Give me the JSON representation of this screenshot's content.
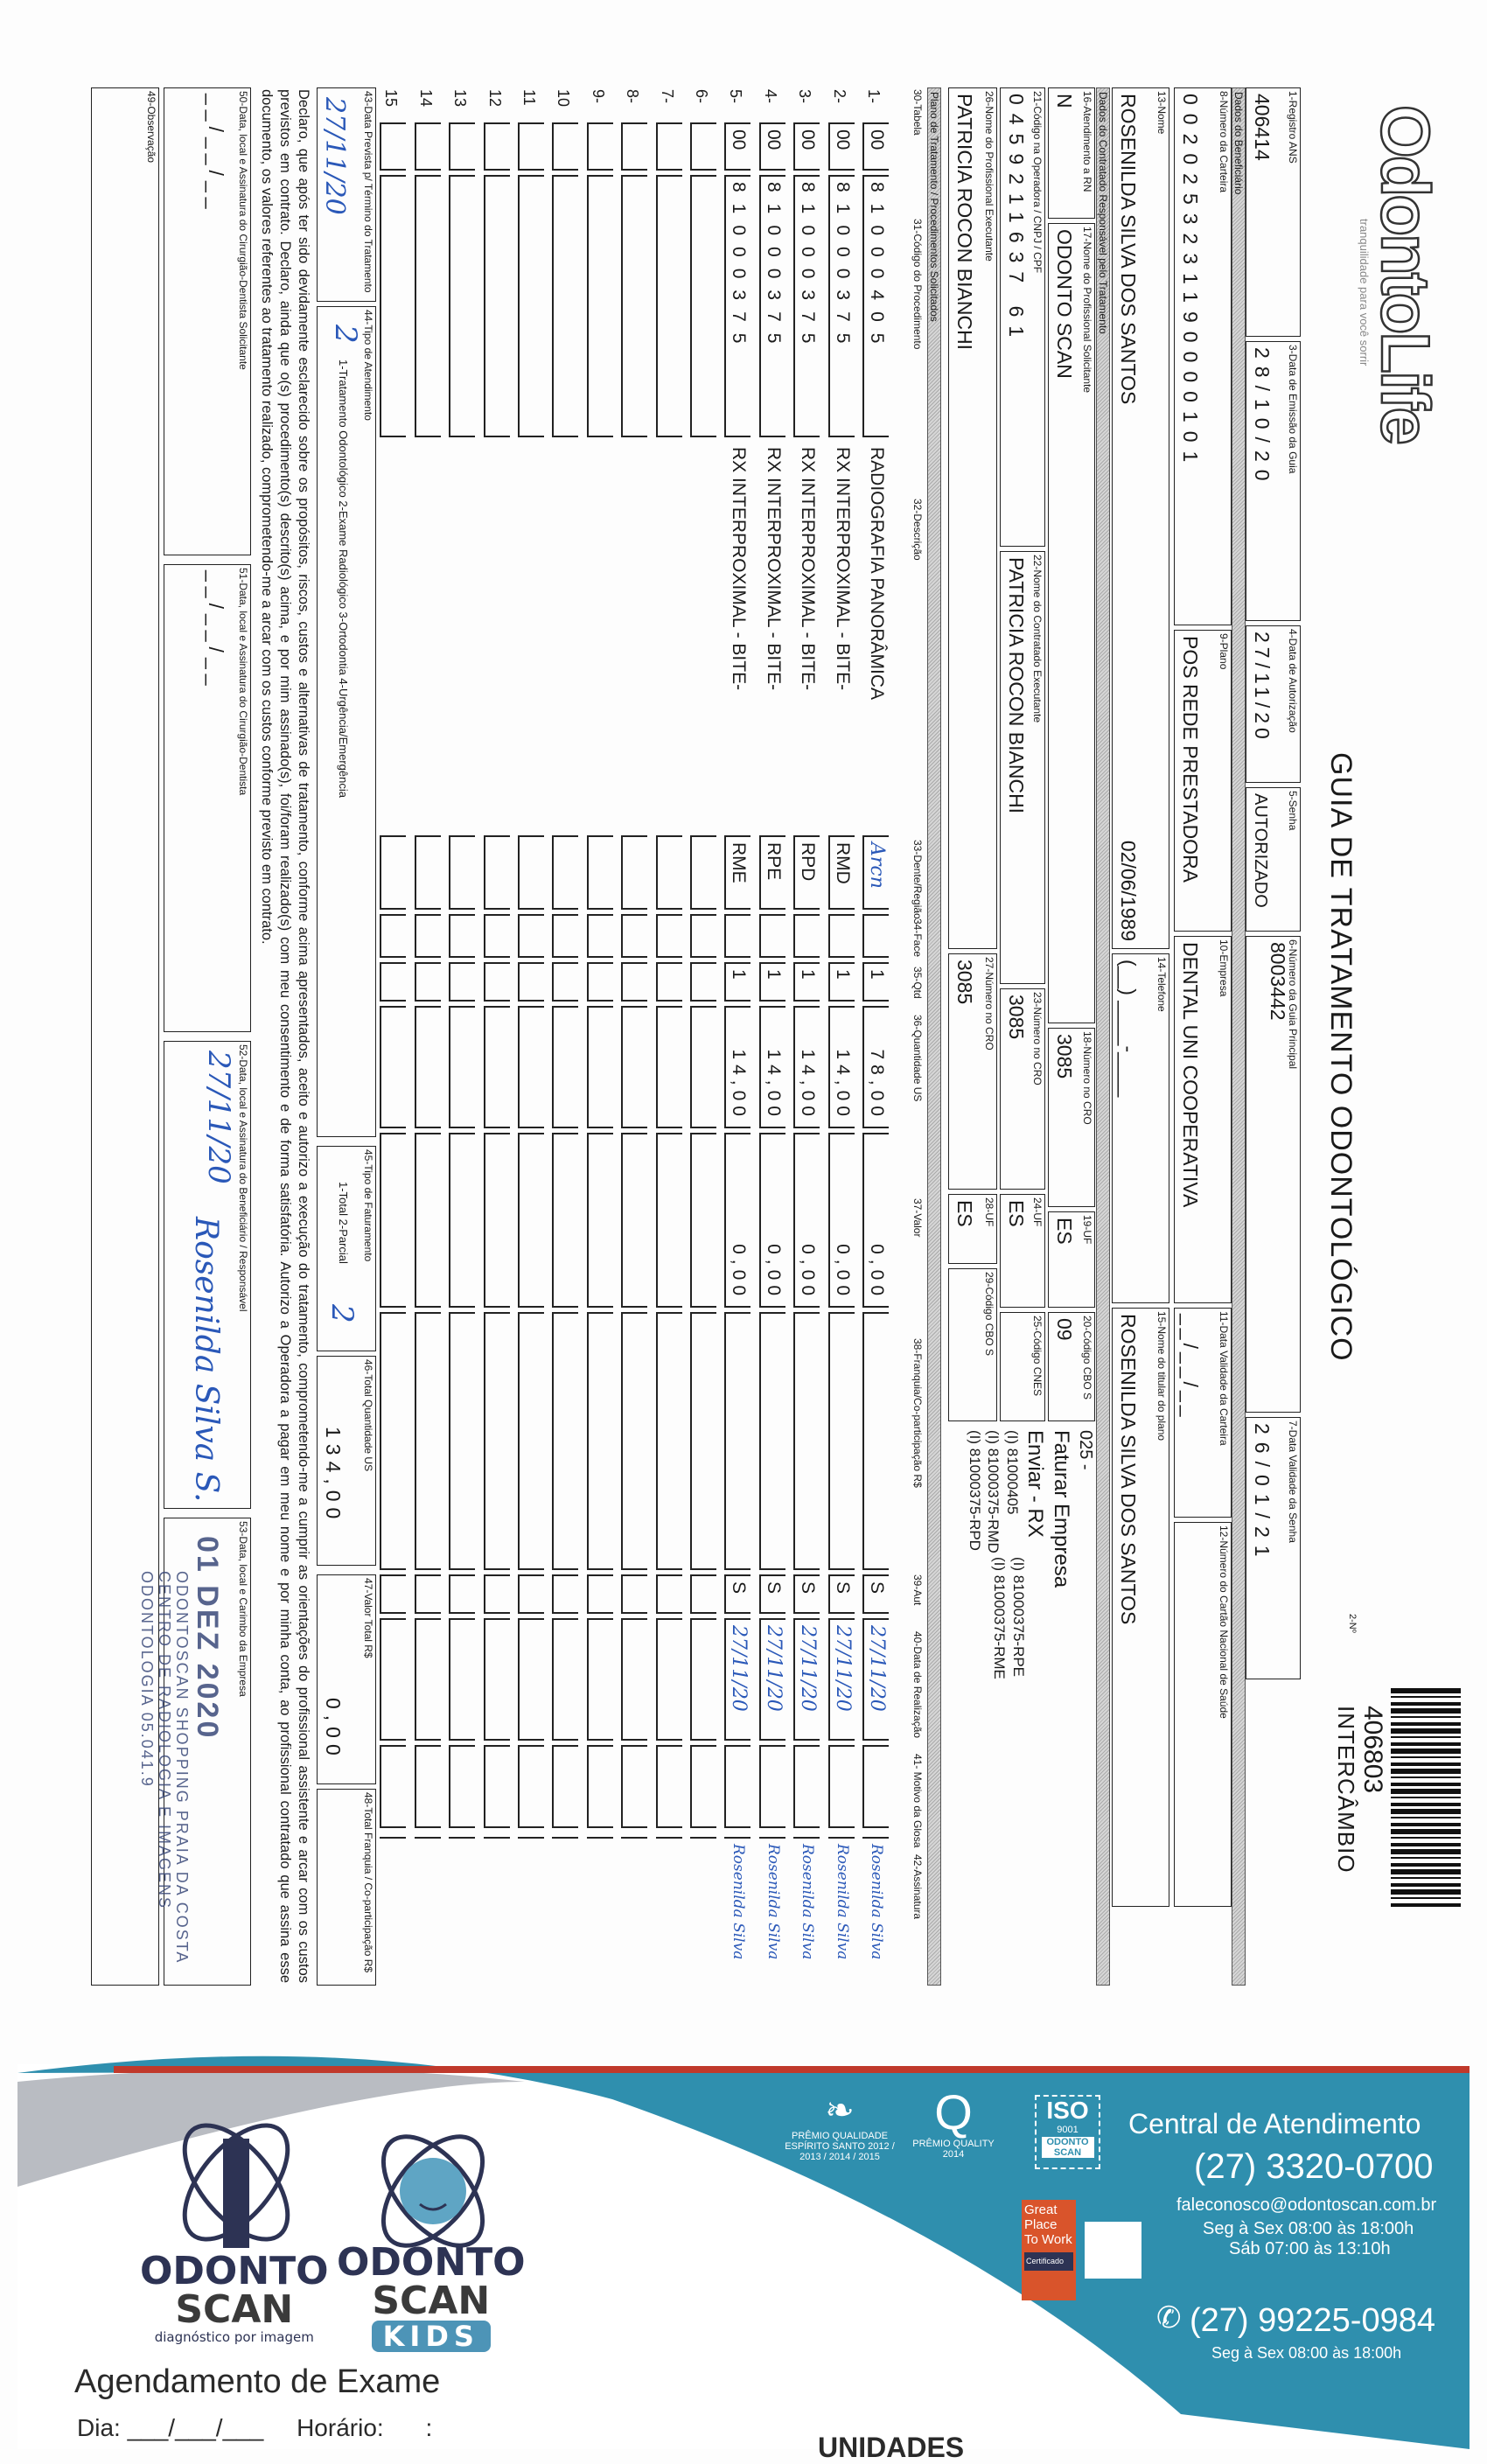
{
  "header": {
    "logo": "OdontoLife",
    "tagline": "tranquilidade para você sorrir",
    "title": "GUIA DE TRATAMENTO ODONTOLÓGICO",
    "num_label": "2-Nº",
    "guide_number": "406803",
    "guide_type": "INTERCÂMBIO"
  },
  "fields": {
    "registro_ans": {
      "label": "1-Registro ANS",
      "value": "406414"
    },
    "data_emissao": {
      "label": "3-Data de Emissão da Guia",
      "value": "28/10/20"
    },
    "data_autorizacao": {
      "label": "4-Data de Autorização",
      "value": "27/11/20"
    },
    "senha": {
      "label": "5-Senha",
      "value": "AUTORIZADO"
    },
    "guia_principal": {
      "label": "6-Número da Guia Principal",
      "value": "8003442"
    },
    "validade_senha": {
      "label": "7-Data Validade da Senha",
      "value": "26/01/21"
    },
    "carteira": {
      "label": "8-Número da Carteira",
      "value": "0020253231190000101"
    },
    "plano": {
      "label": "9-Plano",
      "value": "POS REDE PRESTADORA"
    },
    "empresa": {
      "label": "10-Empresa",
      "value": "DENTAL UNI COOPERATIVA"
    },
    "validade_carteira": {
      "label": "11-Data Validade da Carteira",
      "value": "__/__/__"
    },
    "cartao_saude": {
      "label": "12-Número do Cartão Nacional de Saúde",
      "value": ""
    },
    "nome": {
      "label": "13-Nome",
      "value": "ROSENILDA SILVA DOS SANTOS",
      "extra": "02/06/1989"
    },
    "telefone": {
      "label": "14-Telefone",
      "value": "(__) ____-____"
    },
    "titular": {
      "label": "15-Nome do titular do plano",
      "value": "ROSENILDA SILVA DOS SANTOS"
    },
    "atendimento_rn": {
      "label": "16-Atendimento a RN",
      "value": "N"
    },
    "prof_solicitante": {
      "label": "17-Nome do Profissional Solicitante",
      "value": "ODONTO SCAN"
    },
    "cro_sol": {
      "label": "18-Número no CRO",
      "value": "3085"
    },
    "uf_sol": {
      "label": "19-UF",
      "value": "ES"
    },
    "cbo_sol": {
      "label": "20-Código CBO S",
      "value": "09"
    },
    "cod_operadora": {
      "label": "21-Código na Operadora / CNPJ / CPF",
      "value": "0459211637 61"
    },
    "contratado_exec": {
      "label": "22-Nome do Contratado Executante",
      "value": "PATRICIA ROCON BIANCHI"
    },
    "cro_contr": {
      "label": "23-Número no CRO",
      "value": "3085"
    },
    "uf_contr": {
      "label": "24-UF",
      "value": "ES"
    },
    "cnes": {
      "label": "25-Código CNES",
      "value": ""
    },
    "prof_exec": {
      "label": "26-Nome do Profissional Executante",
      "value": "PATRICIA ROCON BIANCHI"
    },
    "cro_exec": {
      "label": "27-Número no CRO",
      "value": "3085"
    },
    "uf_exec": {
      "label": "28-UF",
      "value": "ES"
    },
    "cbo_exec": {
      "label": "29-Código CBO S",
      "value": ""
    }
  },
  "notes": [
    "025 -",
    "Faturar Empresa",
    "Enviar - RX",
    "(I) 81000405",
    "(I) 81000375-RPE",
    "(I) 81000375-RMD",
    "(I) 81000375-RME",
    "(I) 81000375-RPD"
  ],
  "bands": {
    "beneficiario": "Dados do Beneficiário",
    "contratado": "Dados do Contratado Responsável pelo Tratamento",
    "plano": "Plano de Tratamento / Procedimentos Solicitados"
  },
  "columns": {
    "tabela": "30-Tabela",
    "codigo": "31-Código do Procedimento",
    "descricao": "32-Descrição",
    "dente": "33-Dente/Região",
    "face": "34-Face",
    "qtd": "35-Qtd",
    "us": "36-Quantidade US",
    "valor": "37-Valor",
    "franquia": "38-Franquia/Co-participação R$",
    "aut": "39-Aut",
    "data": "40-Data de Realização",
    "glosa": "41- Motivo da Glosa",
    "assinatura": "42-Assinatura"
  },
  "items": [
    {
      "n": "1-",
      "tabela": "00",
      "codigo": "81000405",
      "descricao": "RADIOGRAFIA PANORÂMICA",
      "dente": "Arcn",
      "face": "",
      "qtd": "1",
      "us": "78,00",
      "valor": "0,00",
      "franquia": "",
      "aut": "S",
      "data": "27/11/20",
      "glosa": "",
      "assinatura": "Rosenilda Silva"
    },
    {
      "n": "2-",
      "tabela": "00",
      "codigo": "81000375",
      "descricao": "RX INTERPROXIMAL - BITE-",
      "dente": "RMD",
      "face": "",
      "qtd": "1",
      "us": "14,00",
      "valor": "0,00",
      "franquia": "",
      "aut": "S",
      "data": "27/11/20",
      "glosa": "",
      "assinatura": "Rosenilda Silva"
    },
    {
      "n": "3-",
      "tabela": "00",
      "codigo": "81000375",
      "descricao": "RX INTERPROXIMAL - BITE-",
      "dente": "RPD",
      "face": "",
      "qtd": "1",
      "us": "14,00",
      "valor": "0,00",
      "franquia": "",
      "aut": "S",
      "data": "27/11/20",
      "glosa": "",
      "assinatura": "Rosenilda Silva"
    },
    {
      "n": "4-",
      "tabela": "00",
      "codigo": "81000375",
      "descricao": "RX INTERPROXIMAL - BITE-",
      "dente": "RPE",
      "face": "",
      "qtd": "1",
      "us": "14,00",
      "valor": "0,00",
      "franquia": "",
      "aut": "S",
      "data": "27/11/20",
      "glosa": "",
      "assinatura": "Rosenilda Silva"
    },
    {
      "n": "5-",
      "tabela": "00",
      "codigo": "81000375",
      "descricao": "RX INTERPROXIMAL - BITE-",
      "dente": "RME",
      "face": "",
      "qtd": "1",
      "us": "14,00",
      "valor": "0,00",
      "franquia": "",
      "aut": "S",
      "data": "27/11/20",
      "glosa": "",
      "assinatura": "Rosenilda Silva"
    },
    {
      "n": "6-"
    },
    {
      "n": "7-"
    },
    {
      "n": "8-"
    },
    {
      "n": "9-"
    },
    {
      "n": "10"
    },
    {
      "n": "11"
    },
    {
      "n": "12"
    },
    {
      "n": "13"
    },
    {
      "n": "14"
    },
    {
      "n": "15"
    }
  ],
  "footer": {
    "termino": {
      "label": "43-Data Prevista p/ Término do Tratamento",
      "value": "27/11/20"
    },
    "tipo_atend": {
      "label": "44-Tipo de Atendimento",
      "options": "1-Tratamento Odontológico  2-Exame Radiológico  3-Ortodontia  4-Urgência/Emergência",
      "value": "2"
    },
    "tipo_fat": {
      "label": "45-Tipo de Faturamento",
      "options": "1-Total  2-Parcial",
      "value": "2"
    },
    "total_us": {
      "label": "46-Total Quantidade US",
      "value": "134,00"
    },
    "valor_total": {
      "label": "47-Valor Total R$",
      "value": "0,00"
    },
    "total_franquia": {
      "label": "48-Total Franquia / Co-participação R$",
      "value": ""
    },
    "declaracao": "Declaro, que após ter sido devidamente esclarecido sobre os propósitos, riscos, custos e alternativas de tratamento, conforme acima apresentados, aceito e autorizo a execução do tratamento, comprometendo-me a cumprir as orientações do profissional assistente e arcar com os custos previstos em contrato. Declaro, ainda que o(s) procedimento(s) descrito(s) acima, e por mim assinado(s), foi/foram realizado(s) com meu consentimento e de forma satisfatória. Autorizo a Operadora a pagar em meu nome e por minha conta, ao profissional contratado que assina esse documento, os valores referentes ao tratamento realizado, comprometendo-me a arcar com os custos conforme previsto em contrato.",
    "sig50": {
      "label": "50-Data, local e Assinatura do Cirurgião-Dentista Solicitante",
      "value": "__/__/__"
    },
    "sig51": {
      "label": "51-Data, local e Assinatura do Cirurgião-Dentista",
      "value": "__/__/__"
    },
    "sig52": {
      "label": "52-Data, local e Assinatura do Beneficiário / Responsável",
      "value": "27/11/20",
      "signature": "Rosenilda Silva S."
    },
    "sig53": {
      "label": "53-Data, local e Carimbo da Empresa",
      "date_stamp": "01 DEZ 2020",
      "stamp": "ODONTOSCAN SHOPPING PRAIA DA COSTA CENTRO DE RADIOLOGIA E IMAGENS ODONTOLOGIA 05.041.9"
    },
    "obs": {
      "label": "49-Observação",
      "value": ""
    }
  },
  "banner": {
    "central_title": "Central de Atendimento",
    "phone": "(27) 3320-0700",
    "email": "faleconosco@odontoscan.com.br",
    "hours1": "Seg à Sex 08:00 às 18:00h",
    "hours2": "Sáb 07:00 às 13:10h",
    "whatsapp": "(27) 99225-0984",
    "whatsapp_hours": "Seg à Sex 08:00 às 18:00h",
    "award1": "PRÊMIO QUALIDADE ESPÍRITO SANTO 2012 / 2013 / 2014 / 2015",
    "award2": "PRÊMIO QUALITY 2014",
    "iso": "ISO",
    "iso_num": "9001",
    "iso_brand": "ODONTO SCAN",
    "gptw": "Great Place To Work",
    "gptw_cert": "Certificado",
    "logo1_line1": "ODONTO",
    "logo1_line2": "SCAN",
    "logo1_tag": "diagnóstico por imagem",
    "logo2_line1": "ODONTO",
    "logo2_line2": "SCAN",
    "logo2_kids": "KIDS",
    "schedule_title": "Agendamento de Exame",
    "day_label": "Dia:",
    "day_value": "___/___/___",
    "time_label": "Horário:",
    "time_value": ":",
    "units": "UNIDADES",
    "colors": {
      "blue": "#2f8fae",
      "navy": "#2d3354",
      "red": "#c0392b"
    }
  }
}
